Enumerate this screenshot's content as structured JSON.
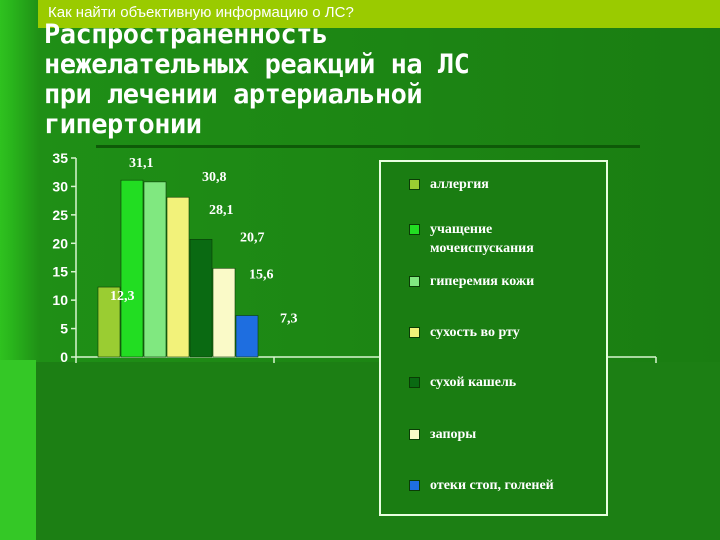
{
  "header": {
    "caption": "Как найти объективную информацию о ЛС?",
    "title": "Распространенность\nнежелательных реакций на ЛС\nпри лечении артериальной\nгипертонии"
  },
  "colors": {
    "background": "#1f8f16",
    "banner": "#9acb00",
    "text": "#ffffff"
  },
  "chart_data": {
    "type": "bar",
    "title": "",
    "xlabel": "",
    "ylabel": "",
    "ylim": [
      0,
      35
    ],
    "yticks": [
      "0",
      "5",
      "10",
      "15",
      "20",
      "25",
      "30",
      "35"
    ],
    "grid": false,
    "legend_position": "right",
    "series": [
      {
        "name": "аллергия",
        "values": [
          12.3
        ],
        "label": "12,3",
        "color": "#9acd32"
      },
      {
        "name": "учащение мочеиспускания",
        "values": [
          31.1
        ],
        "label": "31,1",
        "color": "#22dd22"
      },
      {
        "name": "гиперемия кожи",
        "values": [
          30.8
        ],
        "label": "30,8",
        "color": "#80e880"
      },
      {
        "name": "сухость во рту",
        "values": [
          28.1
        ],
        "label": "28,1",
        "color": "#f2f27a"
      },
      {
        "name": "сухой кашель",
        "values": [
          20.7
        ],
        "label": "20,7",
        "color": "#0a6a12"
      },
      {
        "name": "запоры",
        "values": [
          15.6
        ],
        "label": "15,6",
        "color": "#fafac8"
      },
      {
        "name": "отеки стоп, голеней",
        "values": [
          7.3
        ],
        "label": "7,3",
        "color": "#1e6ee0"
      }
    ]
  }
}
